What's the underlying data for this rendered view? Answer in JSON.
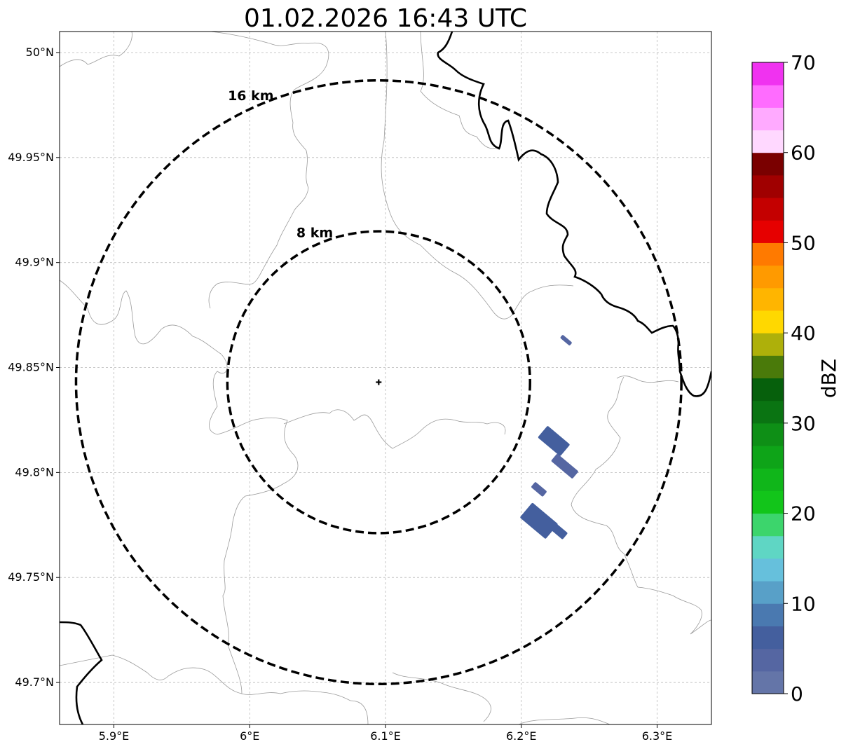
{
  "title": "01.02.2026 16:43 UTC",
  "map": {
    "lon_range": [
      5.86,
      6.34
    ],
    "lat_range": [
      49.68,
      50.01
    ],
    "x_ticks": [
      {
        "value": 5.9,
        "label": "5.9°E"
      },
      {
        "value": 6.0,
        "label": "6°E"
      },
      {
        "value": 6.1,
        "label": "6.1°E"
      },
      {
        "value": 6.2,
        "label": "6.2°E"
      },
      {
        "value": 6.3,
        "label": "6.3°E"
      }
    ],
    "y_ticks": [
      {
        "value": 50.0,
        "label": "50°N"
      },
      {
        "value": 49.95,
        "label": "49.95°N"
      },
      {
        "value": 49.9,
        "label": "49.9°N"
      },
      {
        "value": 49.85,
        "label": "49.85°N"
      },
      {
        "value": 49.8,
        "label": "49.8°N"
      },
      {
        "value": 49.75,
        "label": "49.75°N"
      },
      {
        "value": 49.7,
        "label": "49.7°N"
      }
    ],
    "grid": true,
    "radar_site": {
      "lon": 6.095,
      "lat": 49.843
    },
    "range_rings": [
      {
        "label": "8 km",
        "radius_km": 8
      },
      {
        "label": "16 km",
        "radius_km": 16
      }
    ],
    "echoes": [
      {
        "lon": 6.233,
        "lat": 49.863,
        "dbz": 3
      },
      {
        "lon": 6.224,
        "lat": 49.815,
        "dbz": 5
      },
      {
        "lon": 6.232,
        "lat": 49.803,
        "dbz": 4
      },
      {
        "lon": 6.213,
        "lat": 49.792,
        "dbz": 3
      },
      {
        "lon": 6.213,
        "lat": 49.777,
        "dbz": 6
      },
      {
        "lon": 6.226,
        "lat": 49.773,
        "dbz": 5
      }
    ]
  },
  "colorbar": {
    "label": "dBZ",
    "min": 0,
    "max": 70,
    "step": 2.5,
    "ticks": [
      "0",
      "10",
      "20",
      "30",
      "40",
      "50",
      "60",
      "70"
    ],
    "colors": [
      "#6475a8",
      "#5566a2",
      "#445f9e",
      "#4a79b0",
      "#58a0c8",
      "#66c0dc",
      "#5fd6c4",
      "#3cd56c",
      "#12c51a",
      "#10b61a",
      "#0ea418",
      "#0e8f16",
      "#0a7412",
      "#06600c",
      "#4a7a0a",
      "#aeb00a",
      "#ffd800",
      "#ffb500",
      "#ff9a00",
      "#ff7a00",
      "#e60000",
      "#c40000",
      "#a00000",
      "#7a0000",
      "#ffd8ff",
      "#ffaaff",
      "#ff6cff",
      "#f032f0"
    ]
  }
}
